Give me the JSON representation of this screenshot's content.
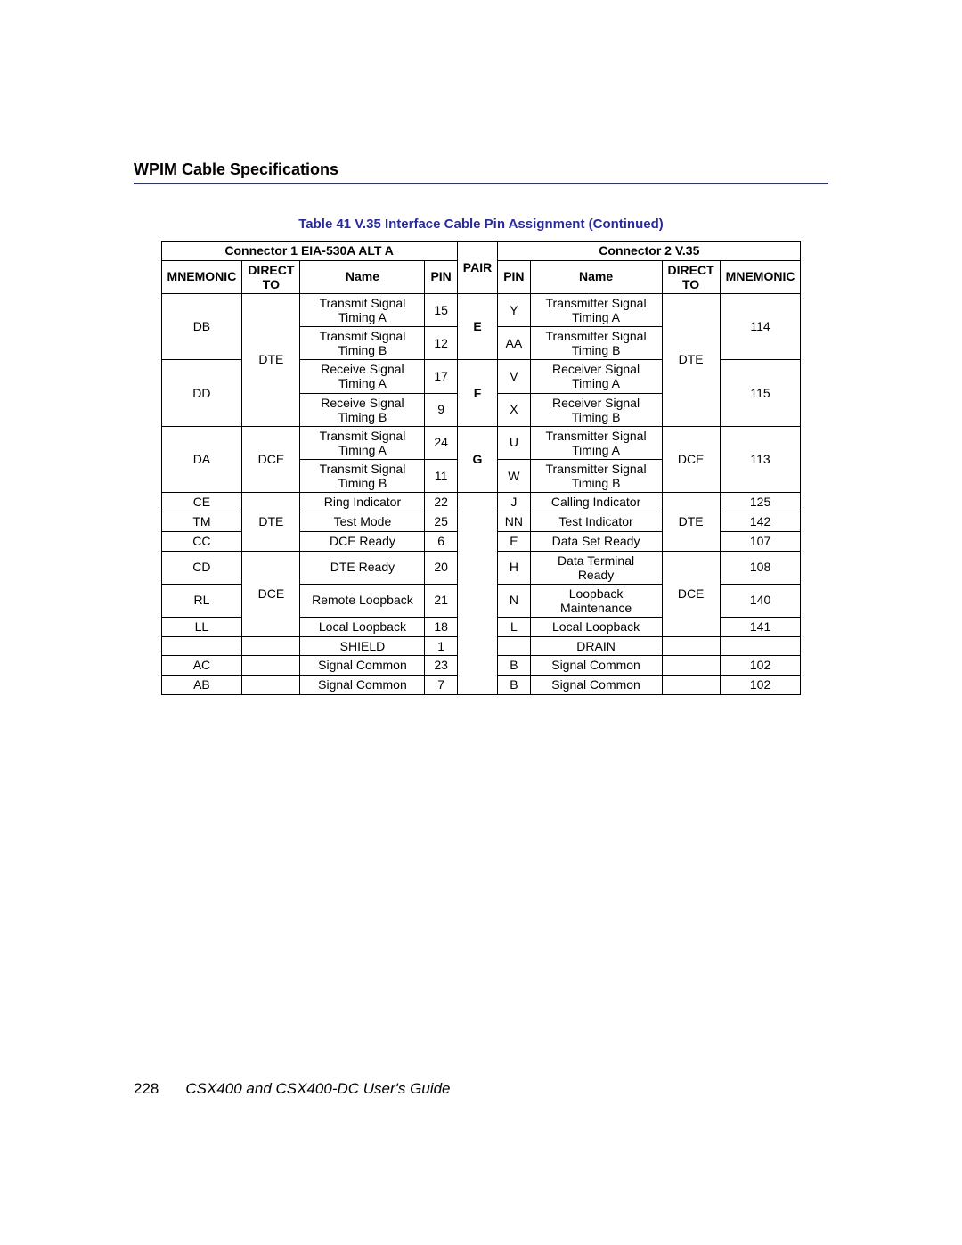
{
  "section_title": "WPIM Cable Specifications",
  "table_title": "Table 41  V.35 Interface Cable Pin Assignment (Continued)",
  "footer_page": "228",
  "footer_text": "CSX400 and CSX400-DC User's Guide",
  "hdr": {
    "conn1": "Connector 1 EIA-530A ALT A",
    "conn2": "Connector 2 V.35",
    "mn": "MNEMONIC",
    "dt_l1": "DIRECT",
    "dt_l2": "TO",
    "name": "Name",
    "pin": "PIN",
    "pair": "PAIR"
  },
  "colors": {
    "rule": "#2a2aa0",
    "title": "#2a2aa0"
  },
  "rows": {
    "r1": {
      "mn1": "DB",
      "nm1a": "Transmit Signal",
      "nm1b": "Timing A",
      "pin1": "15",
      "pin2": "Y",
      "nm2a": "Transmitter Signal",
      "nm2b": "Timing A"
    },
    "r2": {
      "nm1a": "Transmit Signal",
      "nm1b": "Timing B",
      "pin1": "12",
      "pin2": "AA",
      "nm2a": "Transmitter Signal",
      "nm2b": "Timing B",
      "mn2": "114"
    },
    "r3": {
      "mn1": "DD",
      "nm1a": "Receive Signal",
      "nm1b": "Timing A",
      "pin1": "17",
      "pin2": "V",
      "nm2a": "Receiver Signal",
      "nm2b": "Timing A"
    },
    "r4": {
      "nm1a": "Receive Signal",
      "nm1b": "Timing B",
      "pin1": "9",
      "pin2": "X",
      "nm2a": "Receiver Signal",
      "nm2b": "Timing B",
      "mn2": "115"
    },
    "dte1": "DTE",
    "dte1b": "DTE",
    "pairE": "E",
    "pairF": "F",
    "r5": {
      "mn1": "DA",
      "dt1": "DCE",
      "nm1a": "Transmit Signal",
      "nm1b": "Timing A",
      "pin1": "24",
      "pin2": "U",
      "nm2a": "Transmitter Signal",
      "nm2b": "Timing A",
      "dt2": "DCE",
      "mn2": "113"
    },
    "r6": {
      "nm1a": "Transmit Signal",
      "nm1b": "Timing B",
      "pin1": "11",
      "pin2": "W",
      "nm2a": "Transmitter Signal",
      "nm2b": "Timing B"
    },
    "pairG": "G",
    "r7": {
      "mn1": "CE",
      "nm1": "Ring Indicator",
      "pin1": "22",
      "pin2": "J",
      "nm2": "Calling Indicator",
      "mn2": "125"
    },
    "r8": {
      "mn1": "TM",
      "dt1": "DTE",
      "nm1": "Test Mode",
      "pin1": "25",
      "pin2": "NN",
      "nm2": "Test Indicator",
      "dt2": "DTE",
      "mn2": "142"
    },
    "r9": {
      "mn1": "CC",
      "nm1": "DCE Ready",
      "pin1": "6",
      "pin2": "E",
      "nm2": "Data Set Ready",
      "mn2": "107"
    },
    "r10": {
      "mn1": "CD",
      "nm1": "DTE Ready",
      "pin1": "20",
      "pin2": "H",
      "nm2a": "Data Terminal",
      "nm2b": "Ready",
      "mn2": "108"
    },
    "r11": {
      "mn1": "RL",
      "dt1": "DCE",
      "nm1": "Remote Loopback",
      "pin1": "21",
      "pin2": "N",
      "nm2a": "Loopback",
      "nm2b": "Maintenance",
      "dt2": "DCE",
      "mn2": "140"
    },
    "r12": {
      "mn1": "LL",
      "nm1": "Local Loopback",
      "pin1": "18",
      "pin2": "L",
      "nm2": "Local Loopback",
      "mn2": "141"
    },
    "r13": {
      "nm1": "SHIELD",
      "pin1": "1",
      "nm2": "DRAIN"
    },
    "r14": {
      "mn1": "AC",
      "nm1": "Signal Common",
      "pin1": "23",
      "pin2": "B",
      "nm2": "Signal Common",
      "mn2": "102"
    },
    "r15": {
      "mn1": "AB",
      "nm1": "Signal Common",
      "pin1": "7",
      "pin2": "B",
      "nm2": "Signal Common",
      "mn2": "102"
    }
  }
}
